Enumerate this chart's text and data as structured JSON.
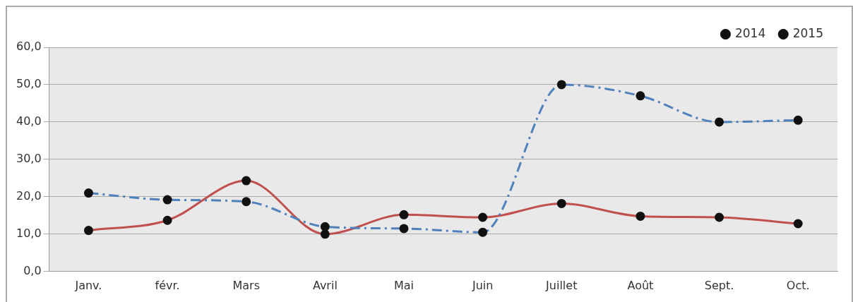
{
  "chart_data": {
    "type": "line",
    "categories": [
      "Janv.",
      "févr.",
      "Mars",
      "Avril",
      "Mai",
      "Juin",
      "Juillet",
      "Août",
      "Sept.",
      "Oct."
    ],
    "series": [
      {
        "name": "2014",
        "color": "#4f81bd",
        "line_style": "dashed",
        "values": [
          21.0,
          19.2,
          18.7,
          12.0,
          11.5,
          10.5,
          50.0,
          47.0,
          40.0,
          40.5
        ]
      },
      {
        "name": "2015",
        "color": "#c0504d",
        "line_style": "solid",
        "values": [
          11.0,
          13.7,
          24.3,
          10.0,
          15.2,
          14.5,
          18.2,
          14.8,
          14.5,
          12.8
        ]
      }
    ],
    "ylim": [
      0,
      60
    ],
    "yticks": [
      {
        "value": 0,
        "label": "0,0"
      },
      {
        "value": 10,
        "label": "10,0"
      },
      {
        "value": 20,
        "label": "20,0"
      },
      {
        "value": 30,
        "label": "30,0"
      },
      {
        "value": 40,
        "label": "40,0"
      },
      {
        "value": 50,
        "label": "50,0"
      },
      {
        "value": 60,
        "label": "60,0"
      }
    ],
    "grid": "y",
    "legend": "top right",
    "marker": "circle"
  }
}
